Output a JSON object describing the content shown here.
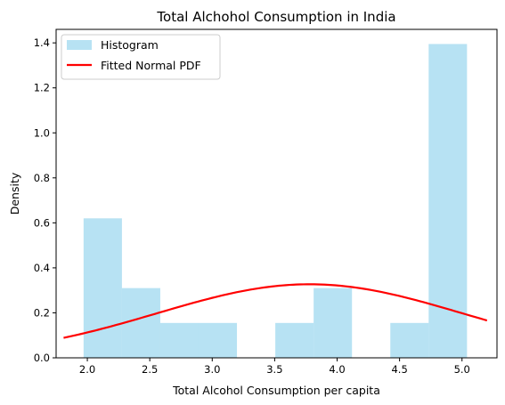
{
  "chart_data": {
    "type": "bar",
    "title": "Total Alchohol Consumption in India",
    "xlabel": "Total Alcohol Consumption per capita",
    "ylabel": "Density",
    "xlim": [
      1.75,
      5.28
    ],
    "ylim": [
      0,
      1.46
    ],
    "xticks": [
      2.0,
      2.5,
      3.0,
      3.5,
      4.0,
      4.5,
      5.0
    ],
    "yticks": [
      0.0,
      0.2,
      0.4,
      0.6,
      0.8,
      1.0,
      1.2,
      1.4
    ],
    "grid": false,
    "legend": {
      "placement": "top-left",
      "entries": [
        {
          "label": "Histogram",
          "kind": "patch",
          "color": "#87CEEB"
        },
        {
          "label": "Fitted Normal PDF",
          "kind": "line",
          "color": "#ff0000"
        }
      ]
    },
    "histogram": {
      "name": "Histogram",
      "color": "#87CEEB",
      "alpha": 0.6,
      "bin_edges": [
        1.97,
        2.277,
        2.584,
        2.891,
        3.198,
        3.505,
        3.812,
        4.119,
        4.426,
        4.733,
        5.04
      ],
      "density": [
        0.62,
        0.31,
        0.155,
        0.155,
        0.0,
        0.155,
        0.31,
        0.0,
        0.155,
        1.395
      ]
    },
    "pdf": {
      "name": "Fitted Normal PDF",
      "color": "#ff0000",
      "mean": 3.78,
      "std": 1.22,
      "x_range": [
        1.81,
        5.2
      ]
    }
  }
}
